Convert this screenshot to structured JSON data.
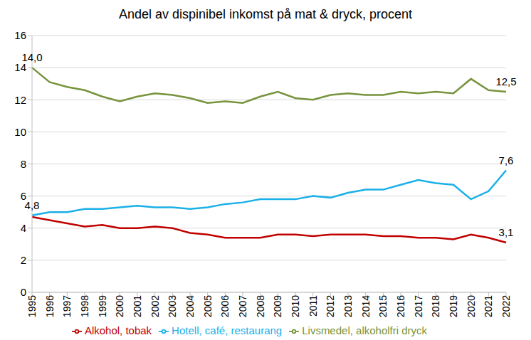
{
  "chart_data": {
    "type": "line",
    "title": "Andel av dispinibel inkomst på mat & dryck, procent",
    "categories": [
      "1995",
      "1996",
      "1997",
      "1998",
      "1999",
      "2000",
      "2001",
      "2002",
      "2003",
      "2004",
      "2005",
      "2006",
      "2007",
      "2008",
      "2009",
      "2010",
      "2011",
      "2012",
      "2013",
      "2014",
      "2015",
      "2016",
      "2017",
      "2018",
      "2019",
      "2020",
      "2021",
      "2022"
    ],
    "series": [
      {
        "name": "Livsmedel, alkoholfri dryck",
        "color": "#77933c",
        "values": [
          14.0,
          13.1,
          12.8,
          12.6,
          12.2,
          11.9,
          12.2,
          12.4,
          12.3,
          12.1,
          11.8,
          11.9,
          11.8,
          12.2,
          12.5,
          12.1,
          12.0,
          12.3,
          12.4,
          12.3,
          12.3,
          12.5,
          12.4,
          12.5,
          12.4,
          13.3,
          12.6,
          12.5
        ]
      },
      {
        "name": "Alkohol, tobak",
        "color": "#c00000",
        "values": [
          4.7,
          4.5,
          4.3,
          4.1,
          4.2,
          4.0,
          4.0,
          4.1,
          4.0,
          3.7,
          3.6,
          3.4,
          3.4,
          3.4,
          3.6,
          3.6,
          3.5,
          3.6,
          3.6,
          3.6,
          3.5,
          3.5,
          3.4,
          3.4,
          3.3,
          3.6,
          3.4,
          3.1
        ]
      },
      {
        "name": "Hotell, café, restaurang",
        "color": "#1ab0e8",
        "values": [
          4.8,
          5.0,
          5.0,
          5.2,
          5.2,
          5.3,
          5.4,
          5.3,
          5.3,
          5.2,
          5.3,
          5.5,
          5.6,
          5.8,
          5.8,
          5.8,
          6.0,
          5.9,
          6.2,
          6.4,
          6.4,
          6.7,
          7.0,
          6.8,
          6.7,
          5.8,
          6.3,
          7.6
        ]
      }
    ],
    "ylim": [
      0,
      16
    ],
    "yticks": [
      0,
      2,
      4,
      6,
      8,
      10,
      12,
      14,
      16
    ],
    "grid": true,
    "legend": "bottom",
    "annotations": [
      {
        "x": "1995",
        "y": 14.0,
        "text": "14,0"
      },
      {
        "x": "2022",
        "y": 12.5,
        "text": "12,5"
      },
      {
        "x": "1995",
        "y": 4.8,
        "text": "4,8"
      },
      {
        "x": "2022",
        "y": 7.6,
        "text": "7,6"
      },
      {
        "x": "2022",
        "y": 3.1,
        "text": "3,1"
      }
    ]
  }
}
